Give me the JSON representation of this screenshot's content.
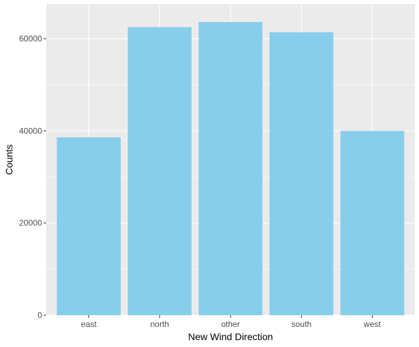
{
  "chart_data": {
    "type": "bar",
    "title": "",
    "xlabel": "New Wind Direction",
    "ylabel": "Counts",
    "categories": [
      "east",
      "north",
      "other",
      "south",
      "west"
    ],
    "values": [
      38600,
      62500,
      63600,
      61400,
      40000
    ],
    "ylim": [
      0,
      67500
    ],
    "yticks": [
      0,
      20000,
      40000,
      60000
    ],
    "yticklabels": [
      "0",
      "20000",
      "40000",
      "60000"
    ],
    "grid": true,
    "legend": "none",
    "colors": {
      "bar": "#87CEEB",
      "panel": "#EBEBEB",
      "grid": "#FFFFFF",
      "text": "#4D4D4D",
      "tick": "#333333"
    }
  }
}
